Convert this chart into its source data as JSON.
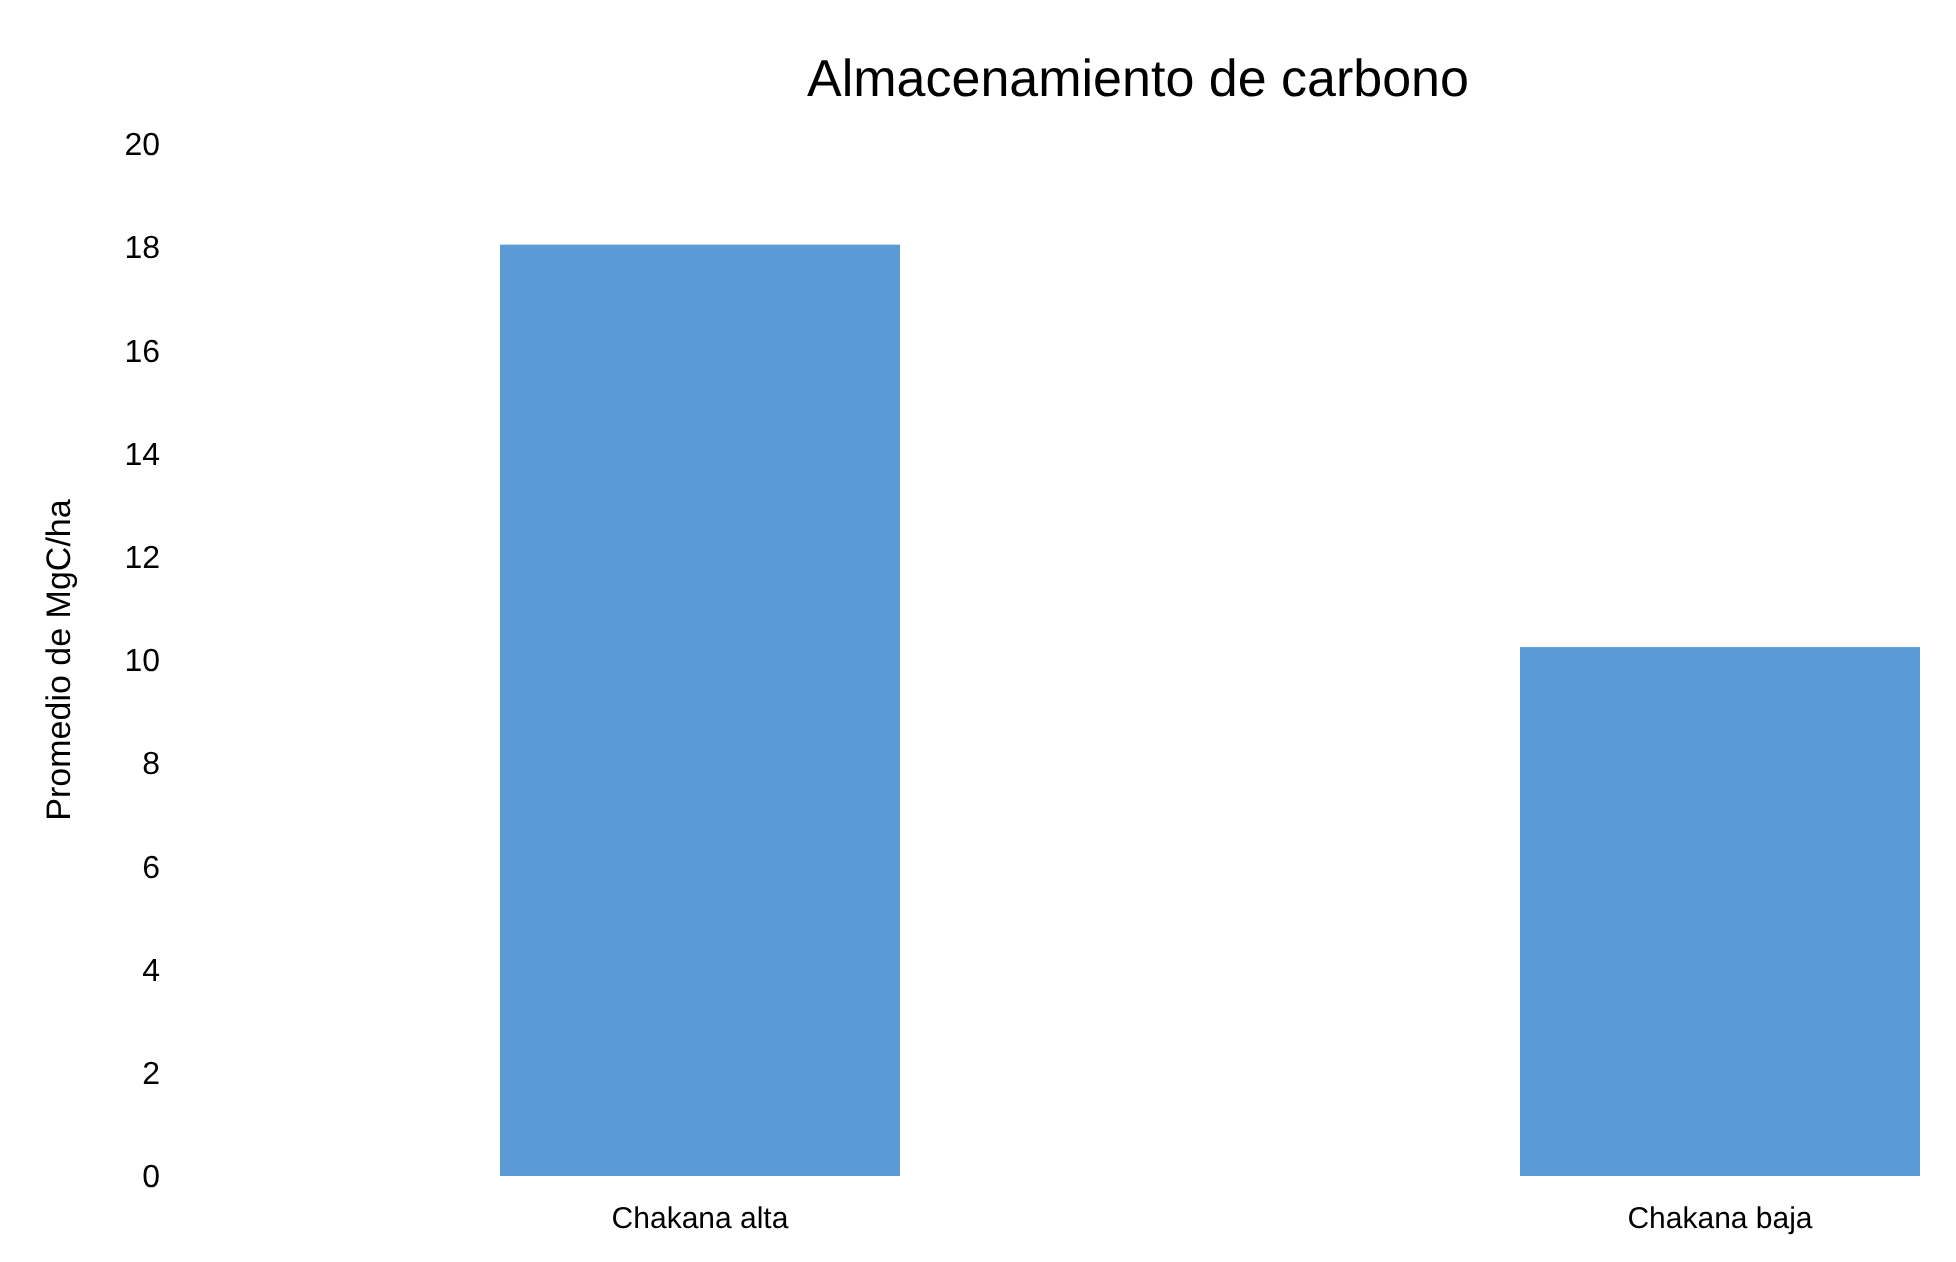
{
  "chart_data": {
    "type": "bar",
    "title": "Almacenamiento de carbono",
    "ylabel": "Promedio de MgC/ha",
    "categories": [
      "Chakana alta",
      "Chakana baja"
    ],
    "values": [
      18.05,
      10.25
    ],
    "color": "#5b9bd5",
    "ylim": [
      0,
      20
    ],
    "yticks": [
      0,
      2,
      4,
      6,
      8,
      10,
      12,
      14,
      16,
      18,
      20
    ]
  }
}
